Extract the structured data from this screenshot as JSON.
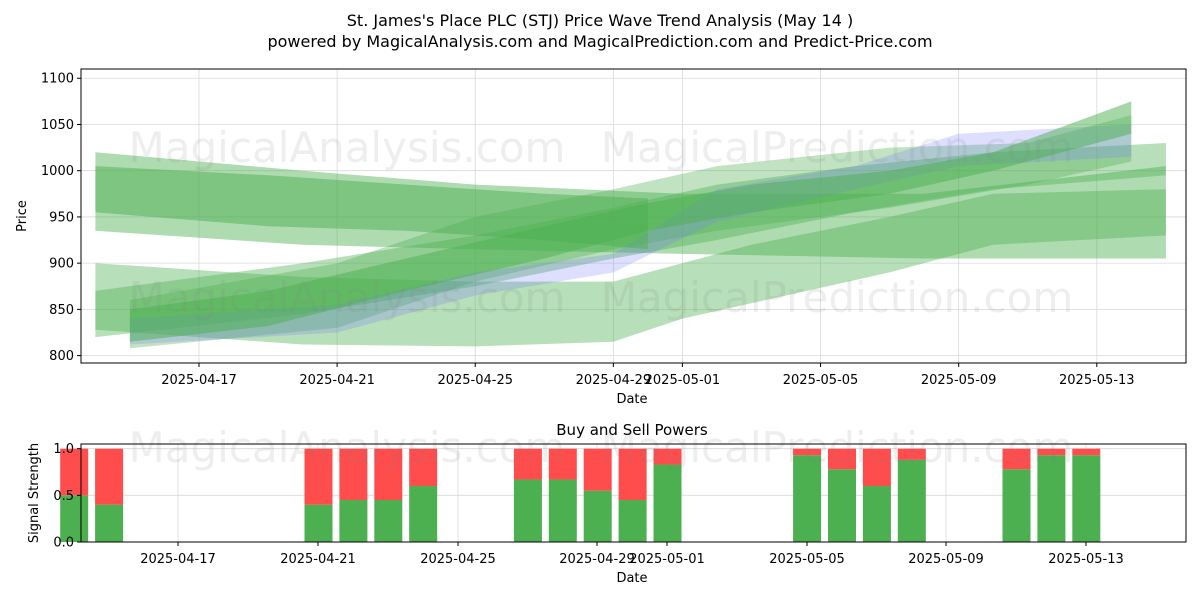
{
  "header": {
    "title": "St. James's Place PLC (STJ) Price Wave Trend Analysis (May 14 )",
    "subtitle": "powered by MagicalAnalysis.com and MagicalPrediction.com and Predict-Price.com"
  },
  "watermarks": [
    "MagicalAnalysis.com",
    "MagicalPrediction.com"
  ],
  "chart_data": [
    {
      "type": "area",
      "title": "",
      "xlabel": "Date",
      "ylabel": "Price",
      "x_range": [
        "2025-04-13T14:00",
        "2025-05-15T14:00"
      ],
      "ylim": [
        792,
        1110
      ],
      "y_ticks": [
        800,
        850,
        900,
        950,
        1000,
        1050,
        1100
      ],
      "x_ticks": [
        "2025-04-17",
        "2025-04-21",
        "2025-04-25",
        "2025-04-29",
        "2025-05-01",
        "2025-05-05",
        "2025-05-09",
        "2025-05-13"
      ],
      "grid": true,
      "colors": {
        "green_band": "#4caf50",
        "blue_band": "#7b7bff"
      },
      "bands": [
        {
          "color": "green",
          "opacity": 0.45,
          "upper": [
            [
              "2025-04-14",
              1020
            ],
            [
              "2025-04-20",
              1000
            ],
            [
              "2025-04-25",
              985
            ],
            [
              "2025-05-01",
              975
            ],
            [
              "2025-05-08",
              975
            ],
            [
              "2025-05-15",
              1005
            ]
          ],
          "lower": [
            [
              "2025-04-14",
              935
            ],
            [
              "2025-04-20",
              920
            ],
            [
              "2025-04-25",
              915
            ],
            [
              "2025-05-01",
              910
            ],
            [
              "2025-05-08",
              905
            ],
            [
              "2025-05-15",
              905
            ]
          ]
        },
        {
          "color": "green",
          "opacity": 0.4,
          "upper": [
            [
              "2025-04-14",
              900
            ],
            [
              "2025-04-20",
              885
            ],
            [
              "2025-04-25",
              880
            ],
            [
              "2025-04-29",
              880
            ],
            [
              "2025-05-03",
              920
            ],
            [
              "2025-05-07",
              950
            ],
            [
              "2025-05-10",
              975
            ],
            [
              "2025-05-15",
              980
            ]
          ],
          "lower": [
            [
              "2025-04-14",
              828
            ],
            [
              "2025-04-20",
              812
            ],
            [
              "2025-04-25",
              810
            ],
            [
              "2025-04-29",
              815
            ],
            [
              "2025-05-01",
              840
            ],
            [
              "2025-05-07",
              890
            ],
            [
              "2025-05-10",
              920
            ],
            [
              "2025-05-15",
              930
            ]
          ]
        },
        {
          "color": "green",
          "opacity": 0.4,
          "upper": [
            [
              "2025-04-14",
              870
            ],
            [
              "2025-04-20",
              900
            ],
            [
              "2025-04-25",
              930
            ],
            [
              "2025-04-29",
              960
            ],
            [
              "2025-05-02",
              985
            ],
            [
              "2025-05-06",
              1005
            ],
            [
              "2025-05-10",
              1020
            ],
            [
              "2025-05-15",
              1030
            ]
          ],
          "lower": [
            [
              "2025-04-14",
              820
            ],
            [
              "2025-04-20",
              845
            ],
            [
              "2025-04-25",
              875
            ],
            [
              "2025-04-29",
              905
            ],
            [
              "2025-05-02",
              925
            ],
            [
              "2025-05-06",
              955
            ],
            [
              "2025-05-10",
              980
            ],
            [
              "2025-05-15",
              995
            ]
          ]
        },
        {
          "color": "green",
          "opacity": 0.35,
          "upper": [
            [
              "2025-04-15",
              860
            ],
            [
              "2025-04-21",
              900
            ],
            [
              "2025-04-25",
              950
            ],
            [
              "2025-04-29",
              980
            ],
            [
              "2025-05-02",
              1005
            ],
            [
              "2025-05-07",
              1025
            ],
            [
              "2025-05-11",
              1030
            ],
            [
              "2025-05-14",
              1060
            ]
          ],
          "lower": [
            [
              "2025-04-15",
              808
            ],
            [
              "2025-04-21",
              830
            ],
            [
              "2025-04-25",
              880
            ],
            [
              "2025-04-29",
              915
            ],
            [
              "2025-05-02",
              935
            ],
            [
              "2025-05-07",
              960
            ],
            [
              "2025-05-11",
              985
            ],
            [
              "2025-05-14",
              1010
            ]
          ]
        },
        {
          "color": "blue",
          "opacity": 0.25,
          "upper": [
            [
              "2025-04-15",
              840
            ],
            [
              "2025-04-21",
              855
            ],
            [
              "2025-04-25",
              890
            ],
            [
              "2025-04-29",
              910
            ],
            [
              "2025-05-02",
              980
            ],
            [
              "2025-05-06",
              1005
            ],
            [
              "2025-05-09",
              1040
            ],
            [
              "2025-05-14",
              1050
            ]
          ],
          "lower": [
            [
              "2025-04-15",
              812
            ],
            [
              "2025-04-21",
              825
            ],
            [
              "2025-04-25",
              865
            ],
            [
              "2025-04-29",
              890
            ],
            [
              "2025-05-02",
              945
            ],
            [
              "2025-05-06",
              980
            ],
            [
              "2025-05-09",
              1005
            ],
            [
              "2025-05-14",
              1015
            ]
          ]
        },
        {
          "color": "green",
          "opacity": 0.5,
          "upper": [
            [
              "2025-04-15",
              850
            ],
            [
              "2025-04-19",
              870
            ],
            [
              "2025-04-23",
              905
            ],
            [
              "2025-04-27",
              940
            ],
            [
              "2025-04-30",
              965
            ],
            [
              "2025-05-03",
              985
            ],
            [
              "2025-05-07",
              1000
            ],
            [
              "2025-05-10",
              1020
            ],
            [
              "2025-05-14",
              1075
            ]
          ],
          "lower": [
            [
              "2025-04-15",
              815
            ],
            [
              "2025-04-19",
              832
            ],
            [
              "2025-04-23",
              870
            ],
            [
              "2025-04-27",
              905
            ],
            [
              "2025-04-30",
              935
            ],
            [
              "2025-05-03",
              955
            ],
            [
              "2025-05-07",
              975
            ],
            [
              "2025-05-10",
              1000
            ],
            [
              "2025-05-14",
              1040
            ]
          ]
        },
        {
          "color": "green",
          "opacity": 0.5,
          "upper": [
            [
              "2025-04-14",
              1005
            ],
            [
              "2025-04-19",
              995
            ],
            [
              "2025-04-23",
              985
            ],
            [
              "2025-04-27",
              975
            ],
            [
              "2025-04-30",
              970
            ]
          ],
          "lower": [
            [
              "2025-04-14",
              955
            ],
            [
              "2025-04-19",
              940
            ],
            [
              "2025-04-23",
              935
            ],
            [
              "2025-04-27",
              925
            ],
            [
              "2025-04-30",
              915
            ]
          ]
        }
      ]
    },
    {
      "type": "bar",
      "title": "Buy and Sell Powers",
      "xlabel": "Date",
      "ylabel": "Signal Strength",
      "ylim": [
        0,
        1.05
      ],
      "y_ticks": [
        0.0,
        0.5,
        1.0
      ],
      "x_ticks": [
        "2025-04-17",
        "2025-04-21",
        "2025-04-25",
        "2025-04-29",
        "2025-05-01",
        "2025-05-05",
        "2025-05-09",
        "2025-05-13"
      ],
      "grid": true,
      "colors": {
        "buy": "#4caf50",
        "sell": "#ff4c4c"
      },
      "categories": [
        "2025-04-15",
        "2025-04-16",
        "2025-04-22",
        "2025-04-23",
        "2025-04-24",
        "2025-04-25",
        "2025-04-28",
        "2025-04-29",
        "2025-04-30",
        "2025-05-01",
        "2025-05-02",
        "2025-05-06",
        "2025-05-07",
        "2025-05-08",
        "2025-05-09",
        "2025-05-12",
        "2025-05-13",
        "2025-05-14"
      ],
      "series": [
        {
          "values": [
            0.5,
            0.4,
            0.4,
            0.45,
            0.45,
            0.6,
            0.67,
            0.67,
            0.55,
            0.45,
            0.83,
            0.93,
            0.78,
            0.6,
            0.88,
            0.78,
            0.93,
            0.93
          ]
        },
        {
          "values": [
            0.5,
            0.6,
            0.6,
            0.55,
            0.55,
            0.4,
            0.33,
            0.33,
            0.45,
            0.55,
            0.17,
            0.07,
            0.22,
            0.4,
            0.12,
            0.22,
            0.07,
            0.07
          ]
        }
      ]
    }
  ]
}
